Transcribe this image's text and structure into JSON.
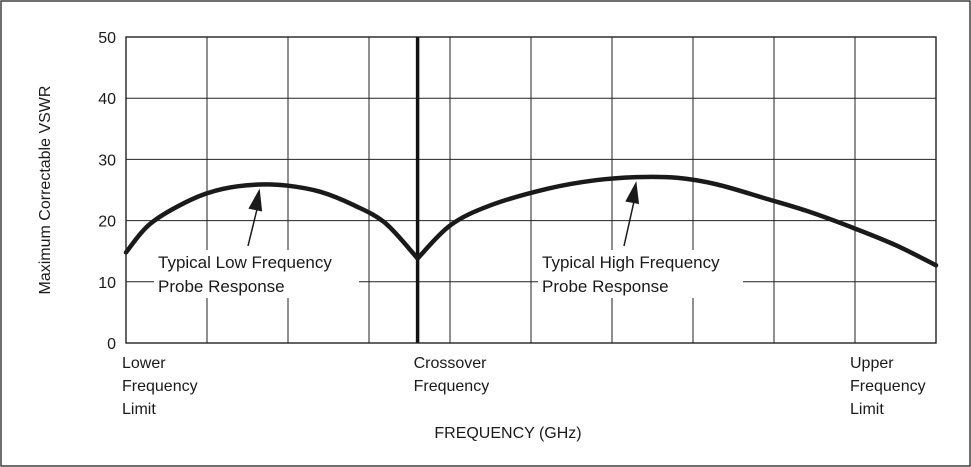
{
  "chart_data": {
    "type": "line",
    "ylabel": "Maximum Correctable VSWR",
    "xlabel": "FREQUENCY (GHz)",
    "ylim": [
      0,
      50
    ],
    "y_ticks": [
      "0",
      "10",
      "20",
      "30",
      "40",
      "50"
    ],
    "grid": true,
    "x_markers": [
      {
        "label": [
          "Lower",
          "Frequency",
          "Limit"
        ],
        "x": 0
      },
      {
        "label": [
          "Crossover",
          "Frequency"
        ],
        "x": 0.36
      },
      {
        "label": [
          "Upper",
          "Frequency",
          "Limit"
        ],
        "x": 1
      }
    ],
    "series": [
      {
        "name": "Typical Low Frequency Probe Response",
        "points": [
          [
            0,
            14.8
          ],
          [
            0.03,
            19.5
          ],
          [
            0.08,
            23.4
          ],
          [
            0.12,
            25.2
          ],
          [
            0.165,
            25.9
          ],
          [
            0.2,
            25.7
          ],
          [
            0.24,
            24.7
          ],
          [
            0.28,
            22.6
          ],
          [
            0.32,
            19.6
          ],
          [
            0.36,
            13.8
          ]
        ]
      },
      {
        "name": "Typical High Frequency Probe Response",
        "points": [
          [
            0.36,
            13.8
          ],
          [
            0.4,
            19.2
          ],
          [
            0.45,
            22.5
          ],
          [
            0.52,
            25.2
          ],
          [
            0.58,
            26.6
          ],
          [
            0.63,
            27.1
          ],
          [
            0.68,
            27.0
          ],
          [
            0.73,
            25.9
          ],
          [
            0.79,
            23.6
          ],
          [
            0.84,
            21.6
          ],
          [
            0.9,
            18.7
          ],
          [
            0.95,
            16.0
          ],
          [
            1,
            12.7
          ]
        ]
      }
    ],
    "annotations": [
      {
        "lines": [
          "Typical Low Frequency",
          "Probe Response"
        ],
        "points_to": [
          0.165,
          25.9
        ]
      },
      {
        "lines": [
          "Typical High Frequency",
          "Probe Response"
        ],
        "points_to": [
          0.63,
          27.1
        ]
      }
    ]
  }
}
